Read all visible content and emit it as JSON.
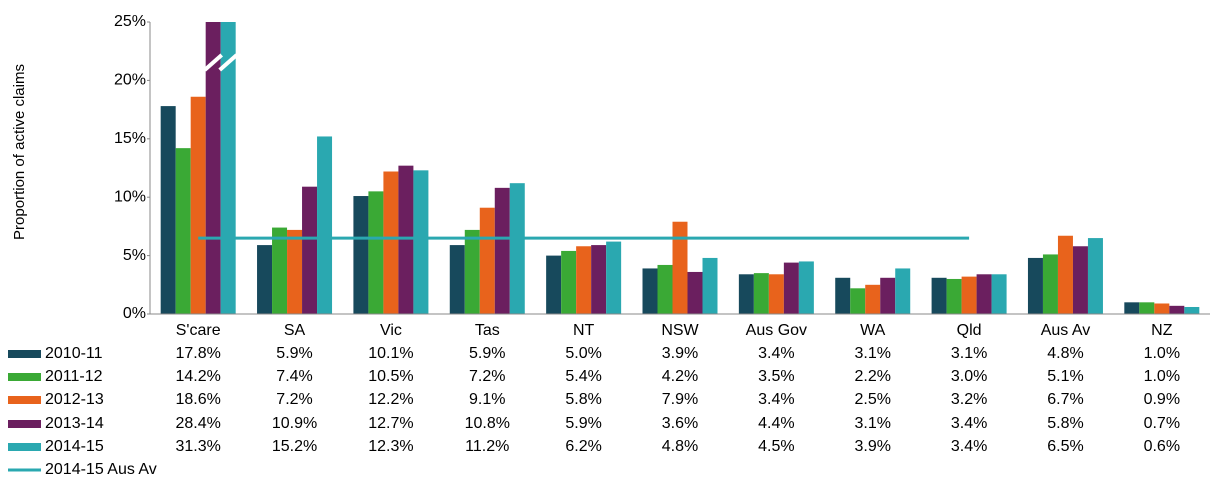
{
  "chart_data": {
    "type": "bar",
    "y_label": "Proportion of active claims",
    "categories": [
      "S'care",
      "SA",
      "Vic",
      "Tas",
      "NT",
      "NSW",
      "Aus Gov",
      "WA",
      "Qld",
      "Aus Av",
      "NZ"
    ],
    "series": [
      {
        "name": "2010-11",
        "color": "#17495c",
        "values": [
          17.8,
          5.9,
          10.1,
          5.9,
          5.0,
          3.9,
          3.4,
          3.1,
          3.1,
          4.8,
          1.0
        ],
        "value_labels": [
          "17.8%",
          "5.9%",
          "10.1%",
          "5.9%",
          "5.0%",
          "3.9%",
          "3.4%",
          "3.1%",
          "3.1%",
          "4.8%",
          "1.0%"
        ]
      },
      {
        "name": "2011-12",
        "color": "#3aa935",
        "values": [
          14.2,
          7.4,
          10.5,
          7.2,
          5.4,
          4.2,
          3.5,
          2.2,
          3.0,
          5.1,
          1.0
        ],
        "value_labels": [
          "14.2%",
          "7.4%",
          "10.5%",
          "7.2%",
          "5.4%",
          "4.2%",
          "3.5%",
          "2.2%",
          "3.0%",
          "5.1%",
          "1.0%"
        ]
      },
      {
        "name": "2012-13",
        "color": "#e8631c",
        "values": [
          18.6,
          7.2,
          12.2,
          9.1,
          5.8,
          7.9,
          3.4,
          2.5,
          3.2,
          6.7,
          0.9
        ],
        "value_labels": [
          "18.6%",
          "7.2%",
          "12.2%",
          "9.1%",
          "5.8%",
          "7.9%",
          "3.4%",
          "2.5%",
          "3.2%",
          "6.7%",
          "0.9%"
        ]
      },
      {
        "name": "2013-14",
        "color": "#6b1f5f",
        "values": [
          28.4,
          10.9,
          12.7,
          10.8,
          5.9,
          3.6,
          4.4,
          3.1,
          3.4,
          5.8,
          0.7
        ],
        "value_labels": [
          "28.4%",
          "10.9%",
          "12.7%",
          "10.8%",
          "5.9%",
          "3.6%",
          "4.4%",
          "3.1%",
          "3.4%",
          "5.8%",
          "0.7%"
        ]
      },
      {
        "name": "2014-15",
        "color": "#2aa8b0",
        "values": [
          31.3,
          15.2,
          12.3,
          11.2,
          6.2,
          4.8,
          4.5,
          3.9,
          3.4,
          6.5,
          0.6
        ],
        "value_labels": [
          "31.3%",
          "15.2%",
          "12.3%",
          "11.2%",
          "6.2%",
          "4.8%",
          "4.5%",
          "3.9%",
          "3.4%",
          "6.5%",
          "0.6%"
        ]
      }
    ],
    "reference": {
      "name": "2014-15 Aus Av",
      "color": "#2aa8b0",
      "value": 6.5
    },
    "ylim": [
      0,
      25
    ],
    "yticks": [
      {
        "value": 0,
        "label": "0%"
      },
      {
        "value": 5,
        "label": "5%"
      },
      {
        "value": 10,
        "label": "10%"
      },
      {
        "value": 15,
        "label": "15%"
      },
      {
        "value": 20,
        "label": "20%"
      },
      {
        "value": 25,
        "label": "25%"
      }
    ]
  }
}
